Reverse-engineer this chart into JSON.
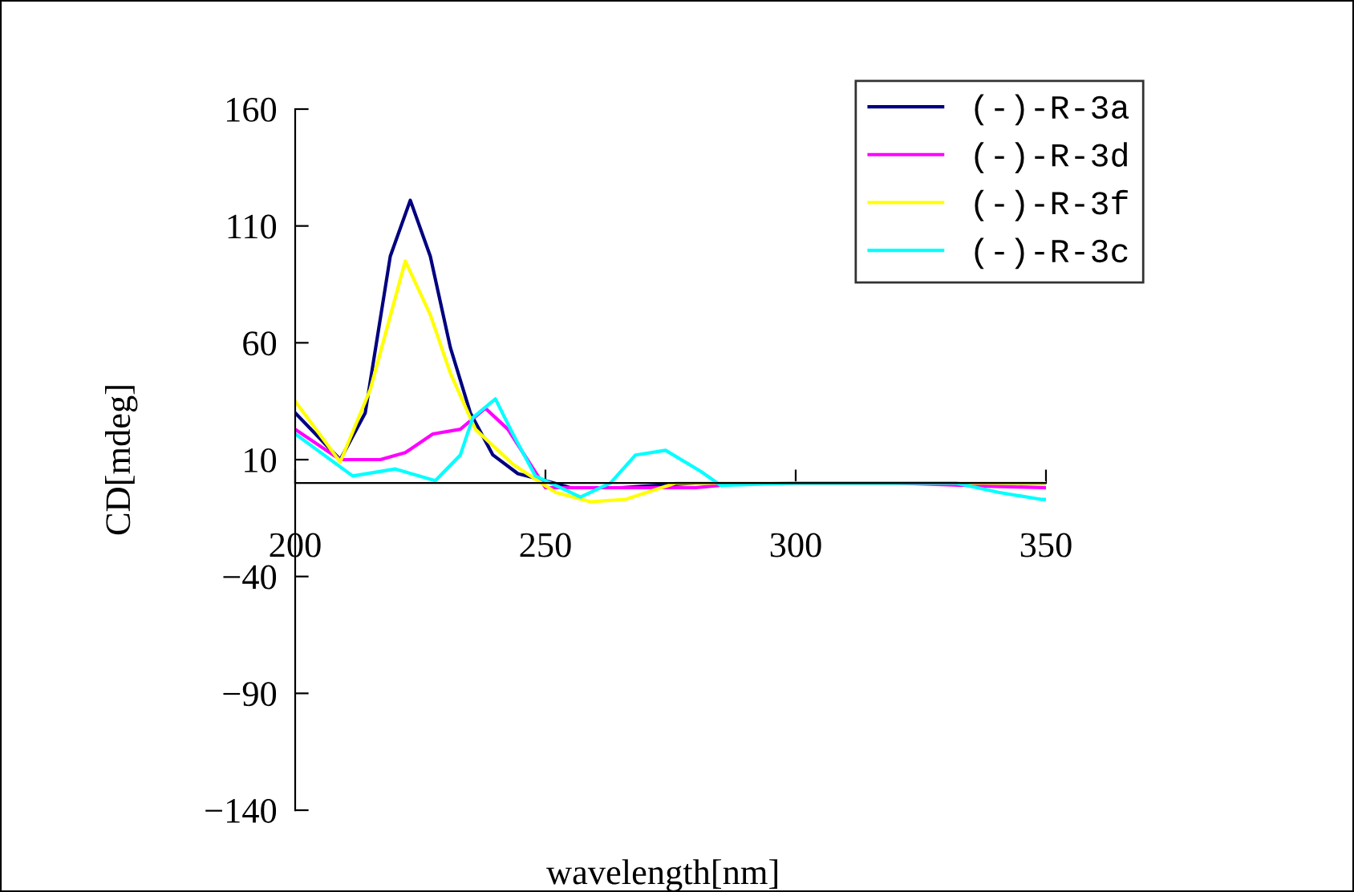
{
  "chart_data": {
    "type": "line",
    "xlabel": "wavelength[nm]",
    "ylabel": "CD[mdeg]",
    "xlim": [
      200,
      350
    ],
    "xticks": [
      200,
      250,
      300,
      350
    ],
    "ylim": [
      -140,
      160
    ],
    "yticks": [
      160,
      110,
      60,
      10,
      {
        "value": -40,
        "label": "−40"
      },
      {
        "value": -90,
        "label": "−90"
      },
      {
        "value": -140,
        "label": "−140"
      }
    ],
    "grid": false,
    "legend": "top right",
    "marker": "none",
    "line_style": "solid",
    "series": [
      {
        "name": "(-)-R-3a",
        "color": "#000080",
        "x": [
          200,
          209,
          214,
          219,
          223,
          227,
          231,
          235,
          239.5,
          244.5,
          250,
          255,
          265,
          280,
          300,
          320,
          340,
          350
        ],
        "values": [
          30,
          10,
          30,
          97,
          121,
          97,
          58,
          30,
          12,
          4,
          1,
          -2,
          -2,
          0,
          0,
          0,
          0,
          0
        ]
      },
      {
        "name": "(-)-R-3d",
        "color": "#ff00ff",
        "x": [
          200,
          209,
          217,
          222,
          227.5,
          233,
          238,
          242.5,
          247,
          250,
          260,
          280,
          290,
          300,
          320,
          340,
          350
        ],
        "values": [
          23,
          10,
          10,
          13,
          21,
          23,
          32,
          23,
          8,
          -2,
          -2,
          -2,
          0,
          0,
          0,
          -1.5,
          -2
        ]
      },
      {
        "name": "(-)-R-3f",
        "color": "#ffff00",
        "x": [
          200,
          209,
          215,
          222,
          227,
          231,
          236,
          243.5,
          252,
          259,
          266,
          276,
          290,
          300,
          320,
          340,
          350
        ],
        "values": [
          35,
          9,
          40,
          95,
          72,
          47,
          23,
          8,
          -4,
          -8,
          -7,
          0,
          0,
          0,
          0,
          0,
          0
        ]
      },
      {
        "name": "(-)-R-3c",
        "color": "#00ffff",
        "x": [
          200,
          211.5,
          220,
          228,
          233,
          235.5,
          240,
          243.5,
          248,
          257,
          263,
          268,
          274,
          281,
          285,
          300,
          332,
          340.5,
          349,
          350
        ],
        "values": [
          21,
          3,
          6,
          1,
          12,
          28,
          36,
          21,
          3,
          -6,
          0,
          12,
          14,
          5,
          -1,
          0,
          0,
          -4,
          -7,
          -7
        ]
      }
    ]
  }
}
